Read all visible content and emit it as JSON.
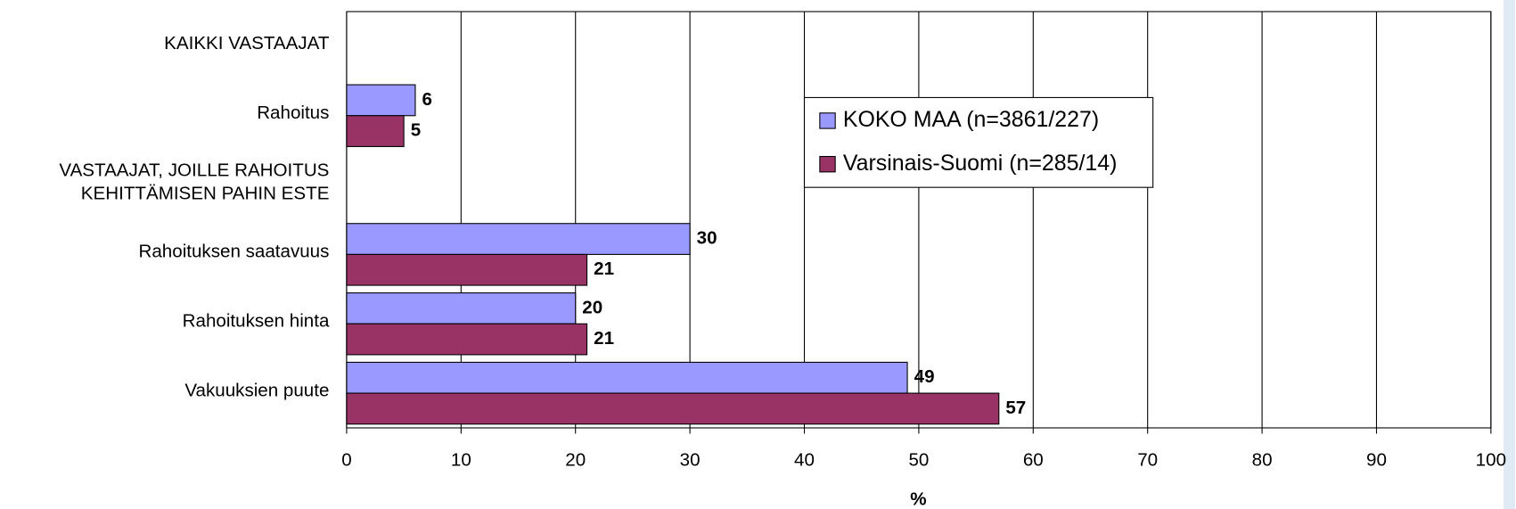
{
  "chart_data": {
    "type": "bar",
    "orientation": "horizontal",
    "categories": [
      "KAIKKI VASTAAJAT",
      "Rahoitus",
      "VASTAAJAT, JOILLE RAHOITUS\nKEHITTÄMISEN PAHIN ESTE",
      "Rahoituksen saatavuus",
      "Rahoituksen hinta",
      "Vakuuksien puute"
    ],
    "series": [
      {
        "name": "KOKO MAA (n=3861/227)",
        "color": "#9999ff",
        "values": [
          null,
          6,
          null,
          30,
          20,
          49
        ]
      },
      {
        "name": "Varsinais-Suomi (n=285/14)",
        "color": "#993366",
        "values": [
          null,
          5,
          null,
          21,
          21,
          57
        ]
      }
    ],
    "xlabel": "%",
    "xlim": [
      0,
      100
    ],
    "xticks": [
      0,
      10,
      20,
      30,
      40,
      50,
      60,
      70,
      80,
      90,
      100
    ],
    "grid": true
  }
}
